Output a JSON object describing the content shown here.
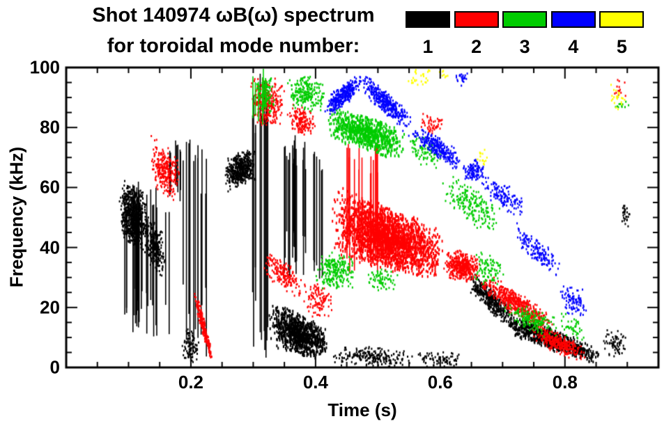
{
  "chart_data": {
    "type": "scatter",
    "title": "Shot 140974 ωB(ω) spectrum",
    "subtitle": "for toroidal mode number:",
    "xlabel": "Time (s)",
    "ylabel": "Frequency (kHz)",
    "xlim": [
      0,
      0.95
    ],
    "ylim": [
      0,
      100
    ],
    "xticks": [
      0.2,
      0.4,
      0.6,
      0.8
    ],
    "xtick_labels": [
      "0.2",
      "0.4",
      "0.6",
      "0.8"
    ],
    "xminor": 0.05,
    "yticks": [
      0,
      20,
      40,
      60,
      80,
      100
    ],
    "ytick_labels": [
      "0",
      "20",
      "40",
      "60",
      "80",
      "100"
    ],
    "yminor": 5,
    "grid": false,
    "legend_position": "top-right",
    "legend": [
      {
        "label": "1",
        "color": "#000000"
      },
      {
        "label": "2",
        "color": "#ff0000"
      },
      {
        "label": "3",
        "color": "#00cc00"
      },
      {
        "label": "4",
        "color": "#0000ff"
      },
      {
        "label": "5",
        "color": "#ffff00"
      }
    ],
    "series": [
      {
        "name": "toroidal mode n=1",
        "color": "#000000",
        "clusters": [
          {
            "style": "blob",
            "t": [
              0.085,
              0.13
            ],
            "fa": [
              44,
              64
            ],
            "fb": [
              36,
              58
            ],
            "n": 700
          },
          {
            "style": "blob",
            "t": [
              0.125,
              0.16
            ],
            "fa": [
              36,
              54
            ],
            "fb": [
              28,
              44
            ],
            "n": 260
          },
          {
            "style": "streak",
            "t": [
              0.09,
              0.165
            ],
            "fa": [
              8,
              62
            ],
            "fb": [
              8,
              62
            ],
            "n": 26
          },
          {
            "style": "streak",
            "t": [
              0.165,
              0.185
            ],
            "fa": [
              55,
              76
            ],
            "fb": [
              55,
              76
            ],
            "n": 7
          },
          {
            "style": "streak",
            "t": [
              0.185,
              0.225
            ],
            "fa": [
              2,
              76
            ],
            "fb": [
              2,
              76
            ],
            "n": 12
          },
          {
            "style": "blob",
            "t": [
              0.185,
              0.215
            ],
            "fa": [
              2,
              16
            ],
            "fb": [
              1,
              10
            ],
            "n": 90
          },
          {
            "style": "blob",
            "t": [
              0.255,
              0.305
            ],
            "fa": [
              58,
              70
            ],
            "fb": [
              62,
              74
            ],
            "n": 520
          },
          {
            "style": "streak",
            "t": [
              0.298,
              0.325
            ],
            "fa": [
              0,
              100
            ],
            "fb": [
              0,
              100
            ],
            "n": 11
          },
          {
            "style": "blob",
            "t": [
              0.325,
              0.42
            ],
            "fa": [
              6,
              24
            ],
            "fb": [
              2,
              13
            ],
            "n": 950,
            "s": [
              2,
              4
            ]
          },
          {
            "style": "streak",
            "t": [
              0.345,
              0.41
            ],
            "fa": [
              28,
              78
            ],
            "fb": [
              28,
              78
            ],
            "n": 24
          },
          {
            "style": "blob",
            "t": [
              0.42,
              0.56
            ],
            "fa": [
              0,
              8
            ],
            "fb": [
              0,
              6
            ],
            "n": 220
          },
          {
            "style": "blob",
            "t": [
              0.56,
              0.645
            ],
            "fa": [
              0,
              6
            ],
            "fb": [
              0,
              5
            ],
            "n": 80
          },
          {
            "style": "blob",
            "t": [
              0.645,
              0.72
            ],
            "fa": [
              25,
              34
            ],
            "fb": [
              11,
              19
            ],
            "n": 380
          },
          {
            "style": "blob",
            "t": [
              0.7,
              0.86
            ],
            "fa": [
              11,
              20
            ],
            "fb": [
              0,
              6
            ],
            "n": 800,
            "s": [
              2,
              4
            ]
          },
          {
            "style": "blob",
            "t": [
              0.862,
              0.9
            ],
            "fa": [
              4,
              14
            ],
            "fb": [
              3,
              12
            ],
            "n": 70
          },
          {
            "style": "blob",
            "t": [
              0.888,
              0.905
            ],
            "fa": [
              46,
              56
            ],
            "fb": [
              46,
              54
            ],
            "n": 30
          }
        ]
      },
      {
        "name": "toroidal mode n=2",
        "color": "#ff0000",
        "clusters": [
          {
            "style": "blob",
            "t": [
              0.135,
              0.185
            ],
            "fa": [
              60,
              78
            ],
            "fb": [
              54,
              70
            ],
            "n": 280
          },
          {
            "style": "blob",
            "t": [
              0.205,
              0.235
            ],
            "fa": [
              20,
              30
            ],
            "fb": [
              0,
              5
            ],
            "n": 220
          },
          {
            "style": "blob",
            "t": [
              0.295,
              0.35
            ],
            "fa": [
              80,
              98
            ],
            "fb": [
              80,
              96
            ],
            "n": 280
          },
          {
            "style": "blob",
            "t": [
              0.355,
              0.4
            ],
            "fa": [
              78,
              88
            ],
            "fb": [
              77,
              86
            ],
            "n": 150
          },
          {
            "style": "blob",
            "t": [
              0.315,
              0.38
            ],
            "fa": [
              30,
              40
            ],
            "fb": [
              22,
              32
            ],
            "n": 180
          },
          {
            "style": "blob",
            "t": [
              0.38,
              0.43
            ],
            "fa": [
              16,
              30
            ],
            "fb": [
              16,
              28
            ],
            "n": 110
          },
          {
            "style": "blob",
            "t": [
              0.425,
              0.605
            ],
            "fa": [
              36,
              62
            ],
            "fb": [
              28,
              46
            ],
            "n": 2400,
            "s": [
              2,
              4
            ]
          },
          {
            "style": "streak",
            "t": [
              0.44,
              0.5
            ],
            "fa": [
              30,
              76
            ],
            "fb": [
              30,
              76
            ],
            "n": 16
          },
          {
            "style": "blob",
            "t": [
              0.565,
              0.605
            ],
            "fa": [
              78,
              86
            ],
            "fb": [
              77,
              84
            ],
            "n": 50
          },
          {
            "style": "blob",
            "t": [
              0.605,
              0.665
            ],
            "fa": [
              29,
              40
            ],
            "fb": [
              28,
              38
            ],
            "n": 420
          },
          {
            "style": "blob",
            "t": [
              0.665,
              0.78
            ],
            "fa": [
              24,
              33
            ],
            "fb": [
              10,
              18
            ],
            "n": 520
          },
          {
            "style": "blob",
            "t": [
              0.745,
              0.835
            ],
            "fa": [
              8,
              16
            ],
            "fb": [
              1,
              7
            ],
            "n": 320
          },
          {
            "style": "blob",
            "t": [
              0.875,
              0.9
            ],
            "fa": [
              88,
              97
            ],
            "fb": [
              88,
              96
            ],
            "n": 14
          }
        ]
      },
      {
        "name": "toroidal mode n=3",
        "color": "#00cc00",
        "clusters": [
          {
            "style": "streak",
            "t": [
              0.298,
              0.335
            ],
            "fa": [
              80,
              100
            ],
            "fb": [
              80,
              100
            ],
            "n": 7
          },
          {
            "style": "blob",
            "t": [
              0.302,
              0.335
            ],
            "fa": [
              84,
              98
            ],
            "fb": [
              84,
              97
            ],
            "n": 110
          },
          {
            "style": "blob",
            "t": [
              0.355,
              0.415
            ],
            "fa": [
              86,
              98
            ],
            "fb": [
              85,
              97
            ],
            "n": 220
          },
          {
            "style": "blob",
            "t": [
              0.42,
              0.545
            ],
            "fa": [
              76,
              88
            ],
            "fb": [
              68,
              80
            ],
            "n": 750,
            "s": [
              2,
              4
            ]
          },
          {
            "style": "blob",
            "t": [
              0.4,
              0.465
            ],
            "fa": [
              25,
              40
            ],
            "fb": [
              26,
              38
            ],
            "n": 240
          },
          {
            "style": "blob",
            "t": [
              0.48,
              0.535
            ],
            "fa": [
              26,
              34
            ],
            "fb": [
              25,
              32
            ],
            "n": 70
          },
          {
            "style": "blob",
            "t": [
              0.545,
              0.605
            ],
            "fa": [
              68,
              79
            ],
            "fb": [
              66,
              76
            ],
            "n": 90
          },
          {
            "style": "blob",
            "t": [
              0.6,
              0.7
            ],
            "fa": [
              52,
              66
            ],
            "fb": [
              42,
              56
            ],
            "n": 200
          },
          {
            "style": "blob",
            "t": [
              0.655,
              0.705
            ],
            "fa": [
              28,
              40
            ],
            "fb": [
              26,
              36
            ],
            "n": 90
          },
          {
            "style": "blob",
            "t": [
              0.7,
              0.79
            ],
            "fa": [
              15,
              24
            ],
            "fb": [
              8,
              17
            ],
            "n": 160
          },
          {
            "style": "blob",
            "t": [
              0.79,
              0.835
            ],
            "fa": [
              9,
              20
            ],
            "fb": [
              8,
              16
            ],
            "n": 45
          },
          {
            "style": "blob",
            "t": [
              0.88,
              0.905
            ],
            "fa": [
              84,
              91
            ],
            "fb": [
              84,
              90
            ],
            "n": 12
          }
        ]
      },
      {
        "name": "toroidal mode n=4",
        "color": "#0000ff",
        "clusters": [
          {
            "style": "blob",
            "t": [
              0.415,
              0.475
            ],
            "fa": [
              82,
              90
            ],
            "fb": [
              92,
              99
            ],
            "n": 320
          },
          {
            "style": "blob",
            "t": [
              0.475,
              0.555
            ],
            "fa": [
              91,
              99
            ],
            "fb": [
              76,
              85
            ],
            "n": 380
          },
          {
            "style": "blob",
            "t": [
              0.555,
              0.635
            ],
            "fa": [
              75,
              82
            ],
            "fb": [
              64,
              72
            ],
            "n": 260
          },
          {
            "style": "blob",
            "t": [
              0.62,
              0.645
            ],
            "fa": [
              94,
              100
            ],
            "fb": [
              93,
              99
            ],
            "n": 25
          },
          {
            "style": "blob",
            "t": [
              0.635,
              0.675
            ],
            "fa": [
              62,
              70
            ],
            "fb": [
              62,
              69
            ],
            "n": 110
          },
          {
            "style": "blob",
            "t": [
              0.665,
              0.735
            ],
            "fa": [
              56,
              66
            ],
            "fb": [
              49,
              58
            ],
            "n": 130
          },
          {
            "style": "blob",
            "t": [
              0.72,
              0.795
            ],
            "fa": [
              41,
              50
            ],
            "fb": [
              27,
              36
            ],
            "n": 150
          },
          {
            "style": "blob",
            "t": [
              0.79,
              0.835
            ],
            "fa": [
              17,
              30
            ],
            "fb": [
              16,
              26
            ],
            "n": 90
          }
        ]
      },
      {
        "name": "toroidal mode n=5",
        "color": "#ffff00",
        "clusters": [
          {
            "style": "blob",
            "t": [
              0.545,
              0.585
            ],
            "fa": [
              92,
              100
            ],
            "fb": [
              92,
              100
            ],
            "n": 26
          },
          {
            "style": "blob",
            "t": [
              0.598,
              0.615
            ],
            "fa": [
              96,
              100
            ],
            "fb": [
              96,
              100
            ],
            "n": 8
          },
          {
            "style": "blob",
            "t": [
              0.658,
              0.678
            ],
            "fa": [
              66,
              74
            ],
            "fb": [
              66,
              73
            ],
            "n": 16
          },
          {
            "style": "blob",
            "t": [
              0.868,
              0.9
            ],
            "fa": [
              85,
              95
            ],
            "fb": [
              85,
              94
            ],
            "n": 22
          }
        ]
      }
    ]
  }
}
